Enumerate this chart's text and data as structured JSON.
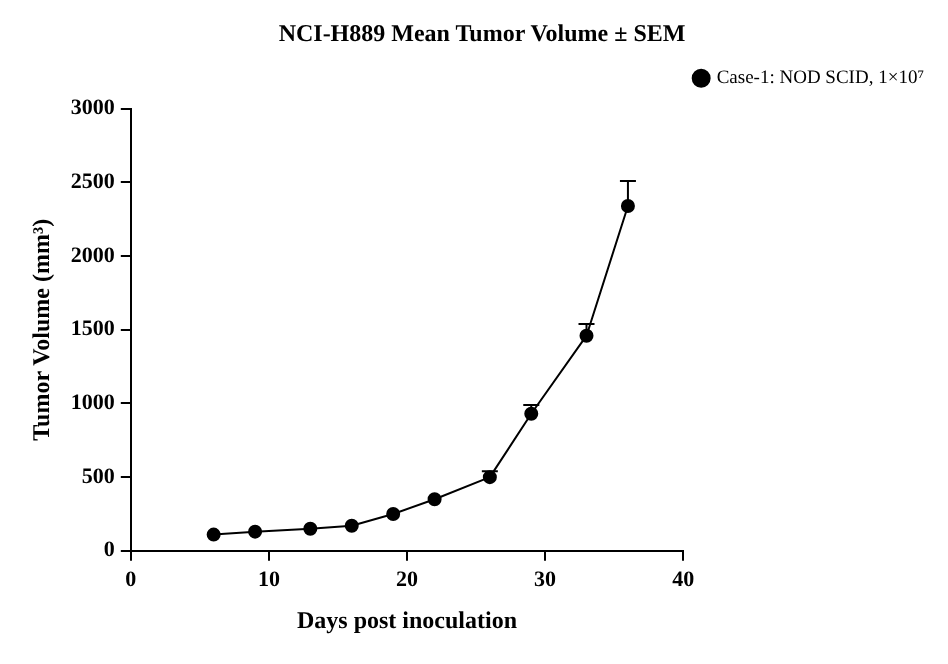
{
  "chart_data": {
    "type": "line",
    "title": "NCI-H889 Mean Tumor Volume ± SEM",
    "xlabel": "Days post inoculation",
    "ylabel": "Tumor Volume (mm³)",
    "x": [
      6,
      9,
      13,
      16,
      19,
      22,
      26,
      29,
      33,
      36
    ],
    "series": [
      {
        "name": "Case-1: NOD SCID, 1×10⁷",
        "color": "#000000",
        "values": [
          110,
          130,
          150,
          170,
          250,
          350,
          500,
          930,
          1460,
          2340
        ],
        "errors": [
          null,
          null,
          null,
          null,
          null,
          null,
          [
            500,
            540
          ],
          [
            930,
            990
          ],
          [
            1460,
            1540
          ],
          [
            2340,
            2510
          ]
        ]
      }
    ],
    "xlim": [
      0,
      40
    ],
    "xticks": [
      0,
      10,
      20,
      30,
      40
    ],
    "ylim": [
      0,
      3000
    ],
    "yticks": [
      0,
      500,
      1000,
      1500,
      2000,
      2500,
      3000
    ],
    "grid": false,
    "legend": "top right",
    "marker": "circle",
    "line_style": "solid"
  }
}
